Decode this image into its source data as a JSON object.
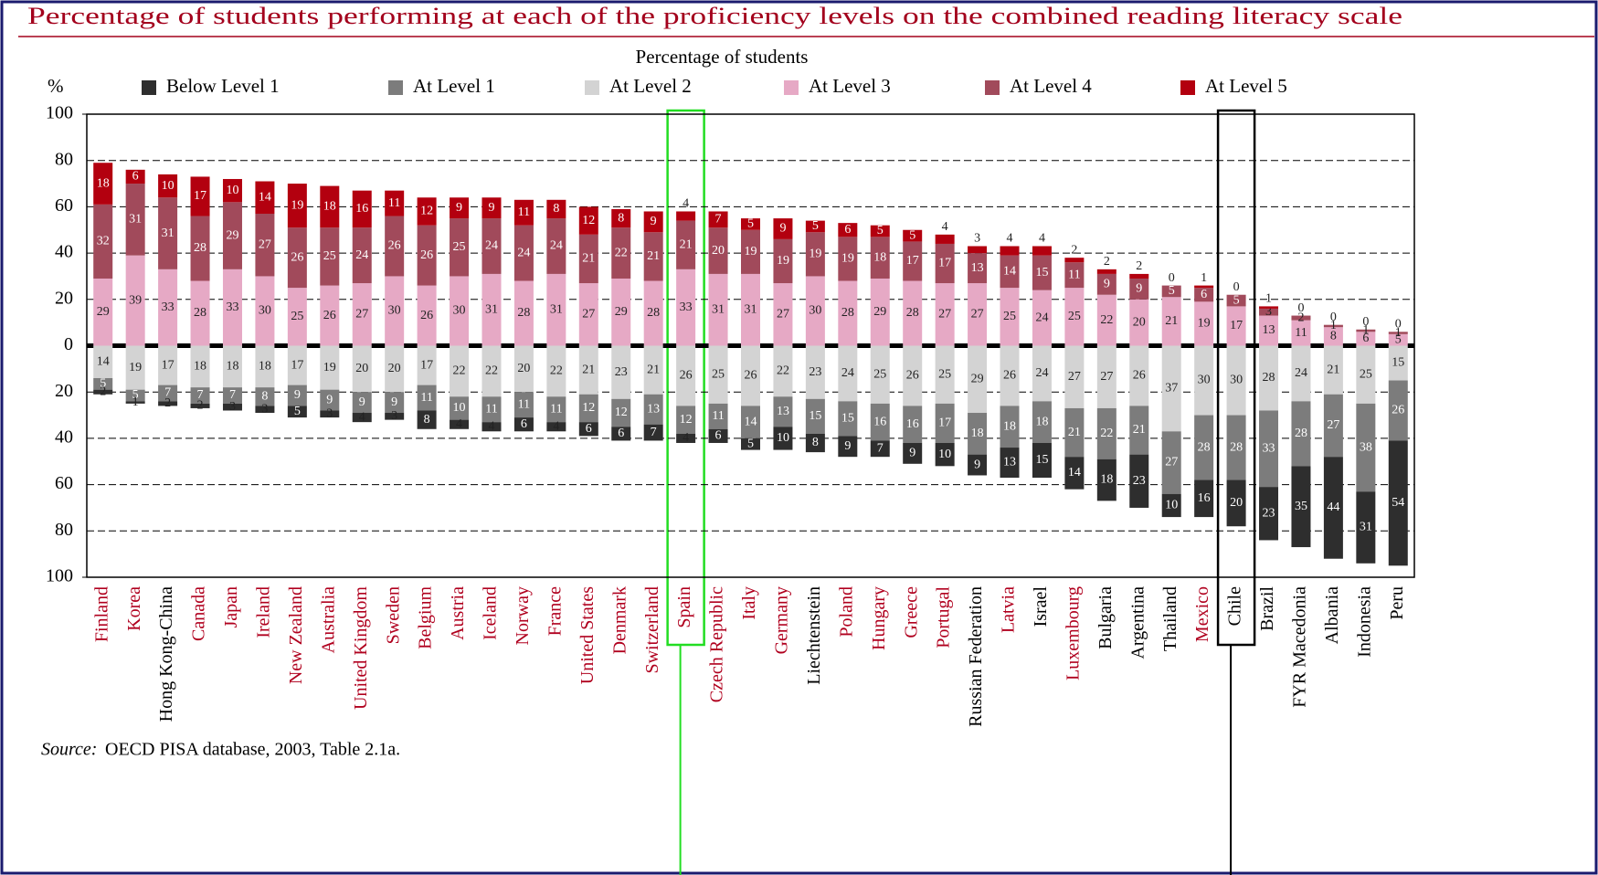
{
  "chart_data": {
    "type": "diverging_stacked_bar",
    "title": "Percentage of students performing at each of the proficiency levels on the combined reading literacy scale",
    "y_label": "%",
    "legend_title": "Percentage of students",
    "source_label": "Source:",
    "source": "OECD PISA database, 2003, Table 2.1a.",
    "categories": [
      "Finland",
      "Korea",
      "Hong Kong-China",
      "Canada",
      "Japan",
      "Ireland",
      "New Zealand",
      "Australia",
      "United Kingdom",
      "Sweden",
      "Belgium",
      "Austria",
      "Iceland",
      "Norway",
      "France",
      "United States",
      "Denmark",
      "Switzerland",
      "Spain",
      "Czech Republic",
      "Italy",
      "Germany",
      "Liechtenstein",
      "Poland",
      "Hungary",
      "Greece",
      "Portugal",
      "Russian Federation",
      "Latvia",
      "Israel",
      "Luxembourg",
      "Bulgaria",
      "Argentina",
      "Thailand",
      "Mexico",
      "Chile",
      "Brazil",
      "FYR Macedonia",
      "Albania",
      "Indonesia",
      "Peru"
    ],
    "category_colors": [
      "#b0001e",
      "#b0001e",
      "#000000",
      "#b0001e",
      "#b0001e",
      "#b0001e",
      "#b0001e",
      "#b0001e",
      "#b0001e",
      "#b0001e",
      "#b0001e",
      "#b0001e",
      "#b0001e",
      "#b0001e",
      "#b0001e",
      "#b0001e",
      "#b0001e",
      "#b0001e",
      "#b0001e",
      "#b0001e",
      "#b0001e",
      "#b0001e",
      "#000000",
      "#b0001e",
      "#b0001e",
      "#b0001e",
      "#b0001e",
      "#000000",
      "#b0001e",
      "#000000",
      "#b0001e",
      "#000000",
      "#000000",
      "#000000",
      "#b0001e",
      "#000000",
      "#000000",
      "#000000",
      "#000000",
      "#000000",
      "#000000"
    ],
    "series": [
      {
        "name": "Below Level 1",
        "color": "#2e2e2e",
        "values": [
          -2,
          -1,
          -2,
          -2,
          -3,
          -3,
          -5,
          -3,
          -4,
          -3,
          -8,
          -4,
          -4,
          -6,
          -4,
          -6,
          -6,
          -7,
          -4,
          -6,
          -5,
          -10,
          -8,
          -9,
          -7,
          -9,
          -10,
          -9,
          -13,
          -15,
          -14,
          -18,
          -23,
          -10,
          -16,
          -20,
          -23,
          -35,
          -44,
          -31,
          -54
        ],
        "value_labels": [
          "2",
          "1",
          "2",
          "2",
          "3",
          "3",
          "5",
          "3",
          "4",
          "3",
          "8",
          "4",
          "4",
          "6",
          "4",
          "6",
          "6",
          "7",
          "4",
          "6",
          "5",
          "10",
          "8",
          "9",
          "7",
          "9",
          "10",
          "9",
          "13",
          "15",
          "14",
          "18",
          "23",
          "10",
          "16",
          "20",
          "23",
          "35",
          "44",
          "31",
          "54"
        ]
      },
      {
        "name": "At Level 1",
        "color": "#7c7c7c",
        "values": [
          -5,
          -5,
          -7,
          -7,
          -7,
          -8,
          -9,
          -9,
          -9,
          -9,
          -11,
          -10,
          -11,
          -11,
          -11,
          -12,
          -12,
          -13,
          -12,
          -11,
          -14,
          -13,
          -15,
          -15,
          -16,
          -16,
          -17,
          -18,
          -18,
          -18,
          -21,
          -22,
          -21,
          -27,
          -28,
          -28,
          -33,
          -28,
          -27,
          -38,
          -26
        ],
        "value_labels": [
          "5",
          "5",
          "7",
          "7",
          "7",
          "8",
          "9",
          "9",
          "9",
          "9",
          "11",
          "10",
          "11",
          "11",
          "11",
          "12",
          "12",
          "13",
          "12",
          "11",
          "14",
          "13",
          "15",
          "15",
          "16",
          "16",
          "17",
          "18",
          "18",
          "18",
          "21",
          "22",
          "21",
          "27",
          "28",
          "28",
          "33",
          "28",
          "27",
          "38",
          "26"
        ]
      },
      {
        "name": "At Level 2",
        "color": "#d3d3d3",
        "values": [
          -14,
          -19,
          -17,
          -18,
          -18,
          -18,
          -17,
          -19,
          -20,
          -20,
          -17,
          -22,
          -22,
          -20,
          -22,
          -21,
          -23,
          -21,
          -26,
          -25,
          -26,
          -22,
          -23,
          -24,
          -25,
          -26,
          -25,
          -29,
          -26,
          -24,
          -27,
          -27,
          -26,
          -37,
          -30,
          -30,
          -28,
          -24,
          -21,
          -25,
          -15
        ],
        "value_labels": [
          "14",
          "19",
          "17",
          "18",
          "18",
          "18",
          "17",
          "19",
          "20",
          "20",
          "17",
          "22",
          "22",
          "20",
          "22",
          "21",
          "23",
          "21",
          "26",
          "25",
          "26",
          "22",
          "23",
          "24",
          "25",
          "26",
          "25",
          "29",
          "26",
          "24",
          "27",
          "27",
          "26",
          "37",
          "30",
          "30",
          "28",
          "24",
          "21",
          "25",
          "15"
        ]
      },
      {
        "name": "At Level 3",
        "color": "#e6a9c5",
        "values": [
          29,
          39,
          33,
          28,
          33,
          30,
          25,
          26,
          27,
          30,
          26,
          30,
          31,
          28,
          31,
          27,
          29,
          28,
          33,
          31,
          31,
          27,
          30,
          28,
          29,
          28,
          27,
          27,
          25,
          24,
          25,
          22,
          20,
          21,
          19,
          17,
          13,
          11,
          8,
          6,
          5
        ]
      },
      {
        "name": "At Level 4",
        "color": "#a14a5b",
        "values": [
          32,
          31,
          31,
          28,
          29,
          27,
          26,
          25,
          24,
          26,
          26,
          25,
          24,
          24,
          24,
          21,
          22,
          21,
          21,
          20,
          19,
          19,
          19,
          19,
          18,
          17,
          17,
          13,
          14,
          15,
          11,
          9,
          9,
          5,
          6,
          5,
          3,
          2,
          1,
          1,
          1
        ]
      },
      {
        "name": "At Level 5",
        "color": "#b3000f",
        "values": [
          18,
          6,
          10,
          17,
          10,
          14,
          19,
          18,
          16,
          11,
          12,
          9,
          9,
          11,
          8,
          12,
          8,
          9,
          4,
          7,
          5,
          9,
          5,
          6,
          5,
          5,
          4,
          3,
          4,
          4,
          2,
          2,
          2,
          0,
          1,
          0,
          1,
          0,
          0,
          0,
          0
        ]
      }
    ],
    "ylim": [
      -100,
      100
    ],
    "yticks": [
      {
        "value": -100,
        "label": "100"
      },
      {
        "value": -80,
        "label": "80"
      },
      {
        "value": -60,
        "label": "60"
      },
      {
        "value": -40,
        "label": "40"
      },
      {
        "value": -20,
        "label": "20"
      },
      0,
      20,
      40,
      60,
      80,
      100
    ],
    "grid": true,
    "highlights": [
      {
        "index": 18,
        "color": "#22dd22"
      },
      {
        "index": 35,
        "color": "#000000"
      }
    ]
  }
}
